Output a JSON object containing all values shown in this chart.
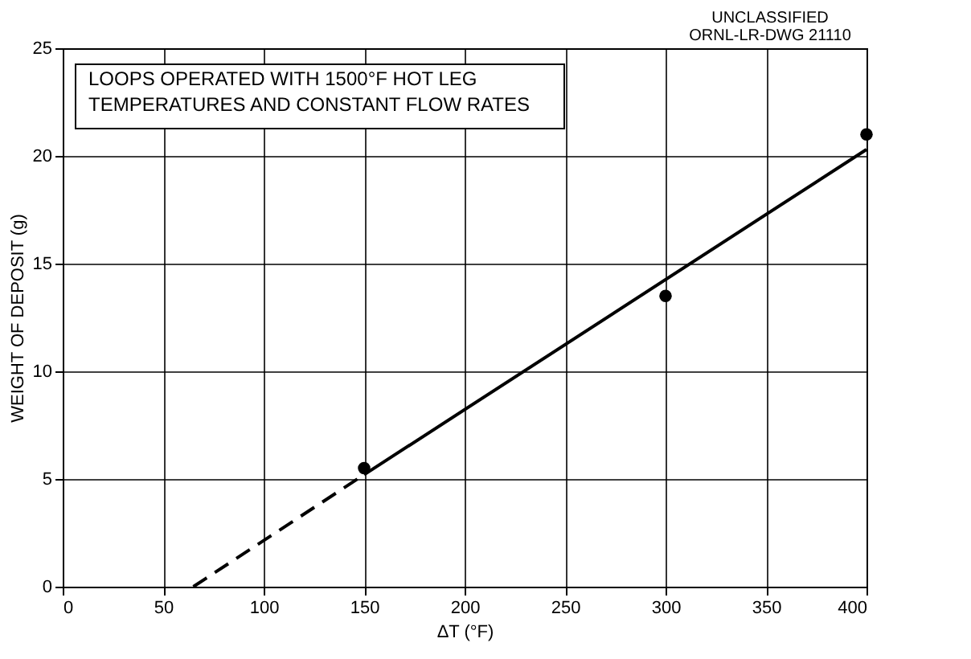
{
  "chart_data": {
    "type": "scatter",
    "xlabel": "ΔT (°F)",
    "ylabel": "WEIGHT OF DEPOSIT (g)",
    "xlim": [
      0,
      400
    ],
    "xticks": [
      0,
      50,
      100,
      150,
      200,
      250,
      300,
      350,
      400
    ],
    "ylim": [
      0,
      25
    ],
    "yticks": [
      0,
      5,
      10,
      15,
      20,
      25
    ],
    "grid": true,
    "annotations": [
      "UNCLASSIFIED",
      "ORNL-LR-DWG 21110",
      "LOOPS OPERATED WITH 1500°F HOT LEG\nTEMPERATURES AND CONSTANT FLOW RATES"
    ],
    "series": [
      {
        "type": "scatter",
        "color": "#000000",
        "marker": "circle",
        "x": [
          150,
          300,
          400
        ],
        "values": [
          5.5,
          13.5,
          21
        ]
      },
      {
        "type": "line",
        "color": "#000000",
        "line_style": "dashed",
        "x": [
          65,
          150
        ],
        "values": [
          0,
          5.2
        ]
      },
      {
        "type": "line",
        "color": "#000000",
        "line_style": "solid",
        "x": [
          150,
          400
        ],
        "values": [
          5.2,
          20.3
        ]
      }
    ]
  }
}
